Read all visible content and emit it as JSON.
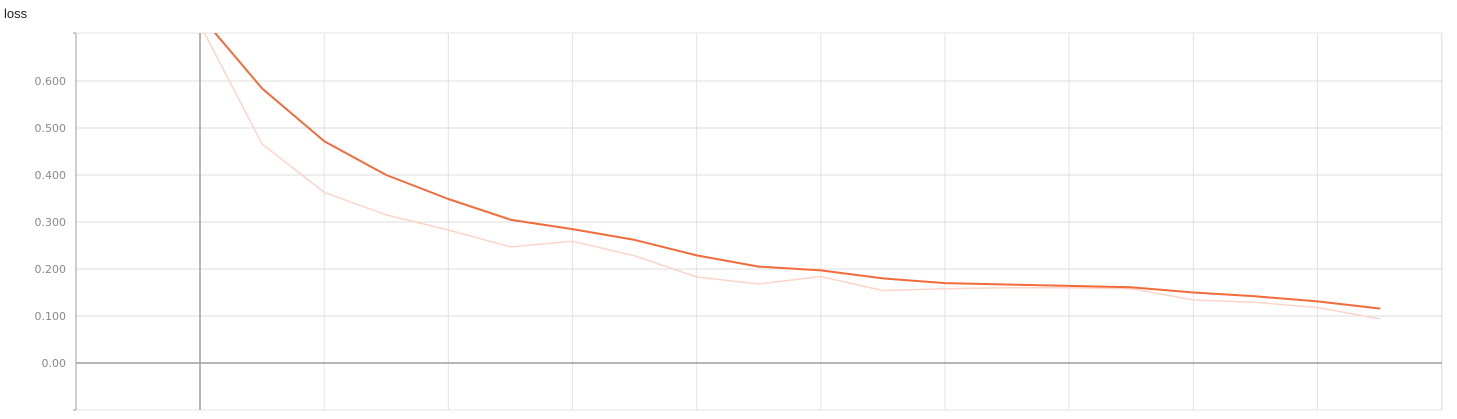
{
  "chart_data": {
    "type": "line",
    "title": "loss",
    "xlabel": "",
    "ylabel": "",
    "ylim": [
      -0.1,
      0.7
    ],
    "y_ticks": [
      "0.600",
      "0.500",
      "0.400",
      "0.300",
      "0.200",
      "0.100",
      "0.00"
    ],
    "y_tick_values": [
      0.6,
      0.5,
      0.4,
      0.3,
      0.2,
      0.1,
      0.0
    ],
    "grid": true,
    "series": [
      {
        "role": "raw",
        "color": "#fbd5c8",
        "x": [
          1,
          2,
          3,
          4,
          5,
          6,
          7,
          8,
          9,
          10,
          11,
          12,
          13,
          14,
          15,
          16,
          17,
          18,
          19,
          20
        ],
        "values": [
          0.72,
          0.466,
          0.363,
          0.315,
          0.283,
          0.247,
          0.259,
          0.228,
          0.183,
          0.168,
          0.184,
          0.154,
          0.158,
          0.16,
          0.16,
          0.158,
          0.134,
          0.129,
          0.118,
          0.094
        ]
      },
      {
        "role": "smoothed",
        "color": "#f26b3a",
        "x": [
          1,
          2,
          3,
          4,
          5,
          6,
          7,
          8,
          9,
          10,
          11,
          12,
          13,
          14,
          15,
          16,
          17,
          18,
          19,
          20
        ],
        "values": [
          0.74,
          0.584,
          0.472,
          0.4,
          0.349,
          0.305,
          0.285,
          0.262,
          0.229,
          0.205,
          0.197,
          0.18,
          0.17,
          0.167,
          0.164,
          0.161,
          0.15,
          0.142,
          0.131,
          0.116
        ]
      }
    ]
  }
}
